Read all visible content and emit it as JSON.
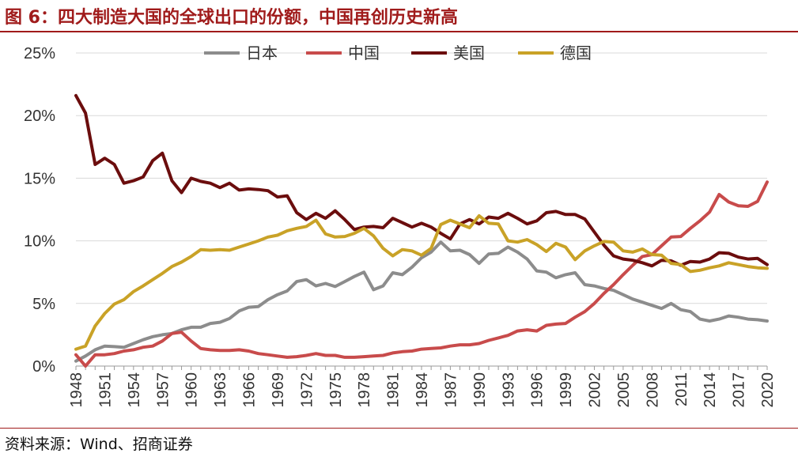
{
  "header": {
    "title": "图 6：四大制造大国的全球出口的份额，中国再创历史新高"
  },
  "footer": {
    "source": "资料来源：Wind、招商证券"
  },
  "chart_data": {
    "type": "line",
    "title": "图 6：四大制造大国的全球出口的份额，中国再创历史新高",
    "xlabel": "",
    "ylabel": "",
    "ylim": [
      0,
      25
    ],
    "yticks": [
      "0%",
      "5%",
      "10%",
      "15%",
      "20%",
      "25%"
    ],
    "xtick_labels": [
      "1948",
      "1951",
      "1954",
      "1957",
      "1960",
      "1963",
      "1966",
      "1969",
      "1972",
      "1975",
      "1978",
      "1981",
      "1984",
      "1987",
      "1990",
      "1993",
      "1996",
      "1999",
      "2002",
      "2005",
      "2008",
      "2011",
      "2014",
      "2017",
      "2020"
    ],
    "grid": "horizontal",
    "legend_position": "top",
    "x": [
      1948,
      1949,
      1950,
      1951,
      1952,
      1953,
      1954,
      1955,
      1956,
      1957,
      1958,
      1959,
      1960,
      1961,
      1962,
      1963,
      1964,
      1965,
      1966,
      1967,
      1968,
      1969,
      1970,
      1971,
      1972,
      1973,
      1974,
      1975,
      1976,
      1977,
      1978,
      1979,
      1980,
      1981,
      1982,
      1983,
      1984,
      1985,
      1986,
      1987,
      1988,
      1989,
      1990,
      1991,
      1992,
      1993,
      1994,
      1995,
      1996,
      1997,
      1998,
      1999,
      2000,
      2001,
      2002,
      2003,
      2004,
      2005,
      2006,
      2007,
      2008,
      2009,
      2010,
      2011,
      2012,
      2013,
      2014,
      2015,
      2016,
      2017,
      2018,
      2019,
      2020
    ],
    "series": [
      {
        "name": "日本",
        "color": "#8c8c8c",
        "values": [
          0.4,
          0.8,
          1.3,
          1.6,
          1.55,
          1.5,
          1.8,
          2.1,
          2.35,
          2.5,
          2.6,
          2.9,
          3.1,
          3.1,
          3.4,
          3.5,
          3.8,
          4.4,
          4.7,
          4.75,
          5.3,
          5.7,
          6.0,
          6.75,
          6.9,
          6.4,
          6.6,
          6.35,
          6.75,
          7.15,
          7.5,
          6.1,
          6.4,
          7.45,
          7.3,
          7.9,
          8.65,
          9.1,
          9.9,
          9.2,
          9.25,
          8.9,
          8.2,
          8.95,
          9.0,
          9.5,
          9.1,
          8.55,
          7.6,
          7.5,
          7.05,
          7.3,
          7.45,
          6.5,
          6.4,
          6.2,
          6.05,
          5.7,
          5.35,
          5.1,
          4.85,
          4.6,
          5.0,
          4.5,
          4.35,
          3.75,
          3.6,
          3.75,
          4.0,
          3.9,
          3.75,
          3.7,
          3.6
        ]
      },
      {
        "name": "中国",
        "color": "#c84b4b",
        "values": [
          0.9,
          0.0,
          0.9,
          0.9,
          1.0,
          1.2,
          1.3,
          1.5,
          1.6,
          2.0,
          2.6,
          2.7,
          2.0,
          1.4,
          1.3,
          1.25,
          1.25,
          1.3,
          1.2,
          1.0,
          0.9,
          0.8,
          0.7,
          0.75,
          0.85,
          1.0,
          0.85,
          0.85,
          0.7,
          0.7,
          0.75,
          0.8,
          0.85,
          1.05,
          1.15,
          1.2,
          1.35,
          1.4,
          1.45,
          1.6,
          1.7,
          1.7,
          1.8,
          2.05,
          2.25,
          2.45,
          2.8,
          2.9,
          2.8,
          3.25,
          3.35,
          3.4,
          3.9,
          4.35,
          5.0,
          5.8,
          6.5,
          7.3,
          8.05,
          8.75,
          8.9,
          9.6,
          10.3,
          10.35,
          11.0,
          11.6,
          12.3,
          13.7,
          13.1,
          12.8,
          12.75,
          13.15,
          14.7
        ]
      },
      {
        "name": "美国",
        "color": "#6b0d0d",
        "values": [
          21.6,
          20.2,
          16.1,
          16.6,
          16.1,
          14.6,
          14.8,
          15.1,
          16.4,
          17.0,
          14.8,
          13.85,
          15.0,
          14.75,
          14.6,
          14.25,
          14.6,
          14.05,
          14.15,
          14.1,
          14.0,
          13.5,
          13.6,
          12.25,
          11.7,
          12.2,
          11.8,
          12.4,
          11.7,
          10.9,
          11.1,
          11.15,
          11.05,
          11.8,
          11.45,
          11.1,
          11.4,
          11.1,
          10.6,
          10.15,
          11.35,
          11.7,
          11.35,
          11.9,
          11.8,
          12.2,
          11.8,
          11.35,
          11.6,
          12.25,
          12.35,
          12.1,
          12.1,
          11.75,
          10.7,
          9.65,
          8.8,
          8.55,
          8.45,
          8.25,
          8.0,
          8.45,
          8.4,
          8.05,
          8.35,
          8.3,
          8.55,
          9.05,
          9.0,
          8.7,
          8.55,
          8.6,
          8.1
        ]
      },
      {
        "name": "德国",
        "color": "#c9a227",
        "values": [
          1.35,
          1.6,
          3.2,
          4.2,
          4.95,
          5.3,
          5.95,
          6.4,
          6.9,
          7.4,
          7.95,
          8.3,
          8.75,
          9.3,
          9.25,
          9.3,
          9.25,
          9.5,
          9.75,
          10.0,
          10.3,
          10.45,
          10.8,
          11.0,
          11.15,
          11.65,
          10.55,
          10.3,
          10.35,
          10.6,
          11.0,
          10.4,
          9.4,
          8.8,
          9.3,
          9.2,
          8.85,
          9.4,
          11.3,
          11.65,
          11.35,
          11.05,
          12.0,
          11.4,
          11.35,
          10.0,
          9.9,
          10.1,
          9.7,
          9.15,
          9.8,
          9.5,
          8.5,
          9.2,
          9.6,
          9.95,
          9.9,
          9.2,
          9.1,
          9.35,
          8.9,
          8.85,
          8.2,
          8.1,
          7.55,
          7.65,
          7.85,
          8.0,
          8.25,
          8.1,
          7.95,
          7.85,
          7.8
        ]
      }
    ]
  }
}
